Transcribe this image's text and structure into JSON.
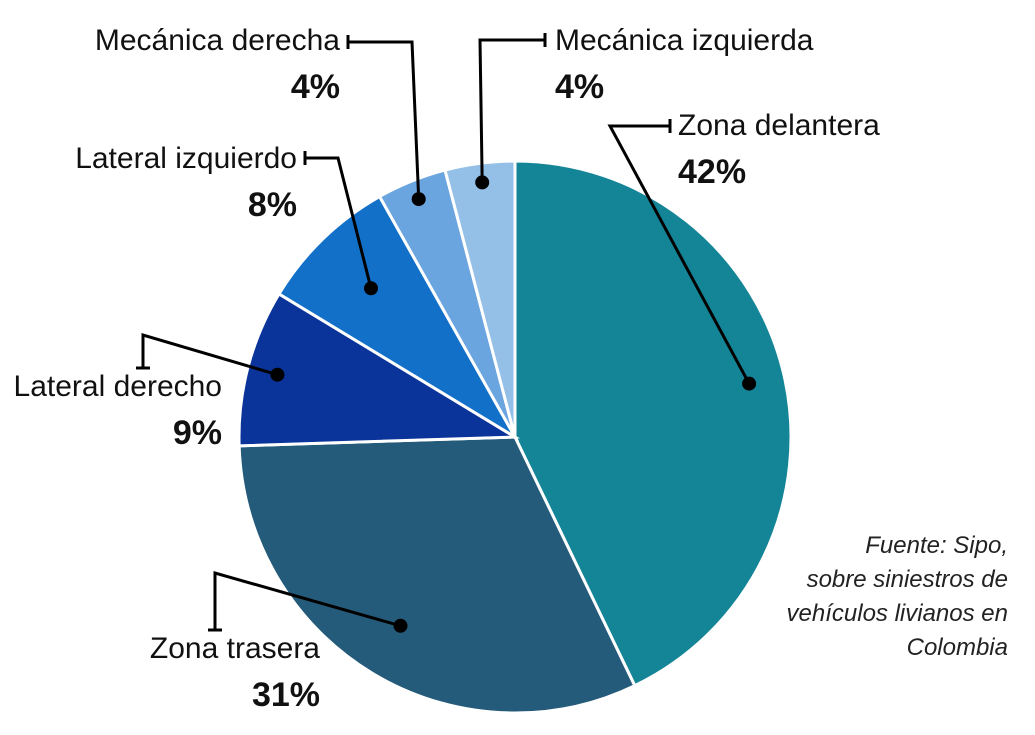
{
  "chart_data": {
    "type": "pie",
    "categories": [
      "Zona delantera",
      "Zona trasera",
      "Lateral derecho",
      "Lateral izquierdo",
      "Mecánica derecha",
      "Mecánica izquierda"
    ],
    "values": [
      42,
      31,
      9,
      8,
      4,
      4
    ],
    "value_labels": [
      "42%",
      "31%",
      "9%",
      "8%",
      "4%",
      "4%"
    ],
    "colors": [
      "#148497",
      "#245a7a",
      "#0a349a",
      "#1270c8",
      "#6aa5e0",
      "#94c0e8"
    ],
    "start": "12 o'clock",
    "direction": "clockwise",
    "legend": "none (direct labels with leader lines)",
    "annotation": [
      "Fuente: Sipo,",
      "sobre siniestros de",
      "vehículos livianos en",
      "Colombia"
    ]
  }
}
